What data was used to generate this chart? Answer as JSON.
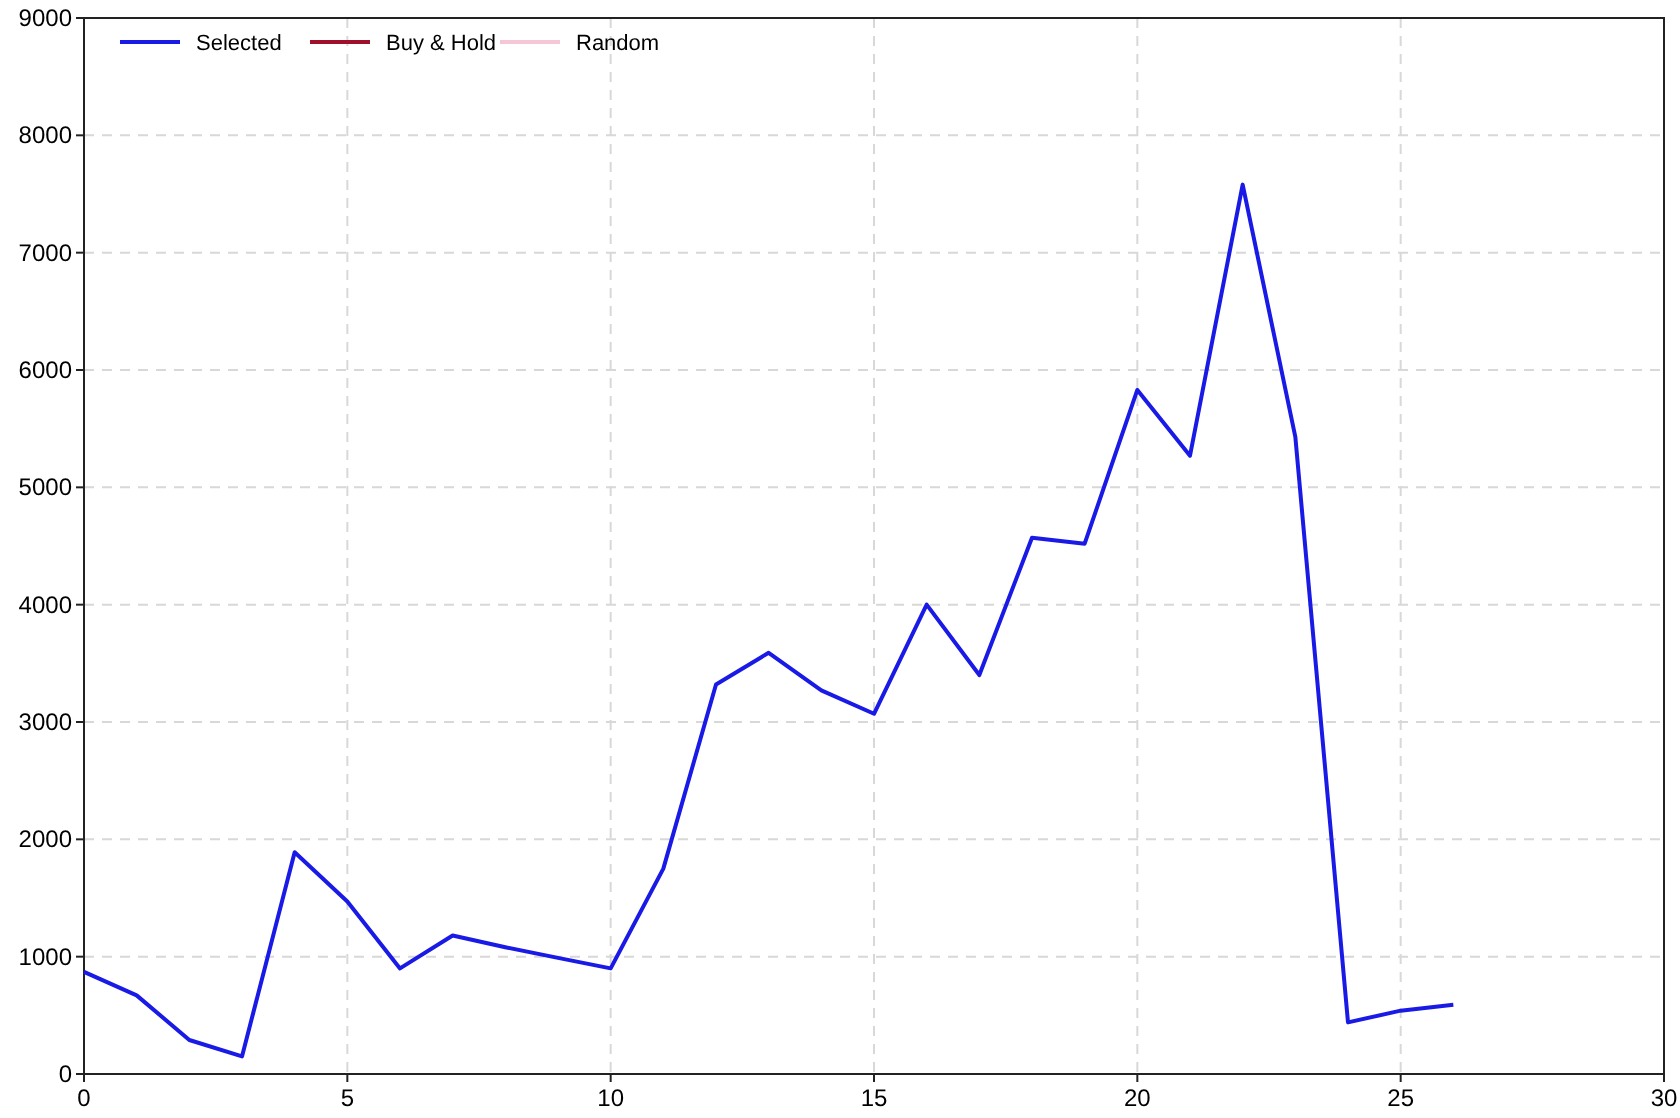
{
  "chart_data": {
    "type": "line",
    "x": [
      0,
      1,
      2,
      3,
      4,
      5,
      6,
      7,
      8,
      9,
      10,
      11,
      12,
      13,
      14,
      15,
      16,
      17,
      18,
      19,
      20,
      21,
      22,
      23,
      24,
      25,
      26
    ],
    "series": [
      {
        "name": "Selected",
        "color": "#1a1ae6",
        "values": [
          870,
          670,
          290,
          150,
          1890,
          1470,
          900,
          1180,
          1080,
          990,
          900,
          1750,
          3320,
          3590,
          3270,
          3070,
          4000,
          3400,
          4570,
          4520,
          5830,
          5270,
          7580,
          5430,
          440,
          540,
          590
        ]
      },
      {
        "name": "Buy & Hold",
        "color": "#a0102a",
        "values": [
          null,
          null,
          null,
          null,
          null,
          null,
          null,
          null,
          null,
          null,
          null,
          null,
          null,
          null,
          null,
          null,
          null,
          null,
          null,
          null,
          null,
          null,
          null,
          null,
          null,
          null,
          null
        ]
      },
      {
        "name": "Random",
        "color": "#f4c6d6",
        "values": [
          null,
          null,
          null,
          null,
          null,
          null,
          null,
          null,
          null,
          null,
          null,
          null,
          null,
          null,
          null,
          null,
          null,
          null,
          null,
          null,
          null,
          null,
          null,
          null,
          null,
          null,
          null
        ]
      }
    ],
    "xlim": [
      0,
      30
    ],
    "xticks": [
      0,
      5,
      10,
      15,
      20,
      25,
      30
    ],
    "ylim": [
      0,
      9000
    ],
    "yticks": [
      0,
      1000,
      2000,
      3000,
      4000,
      5000,
      6000,
      7000,
      8000,
      9000
    ],
    "grid": true,
    "legend": "top left",
    "marker": "none",
    "line_style": "solid"
  }
}
